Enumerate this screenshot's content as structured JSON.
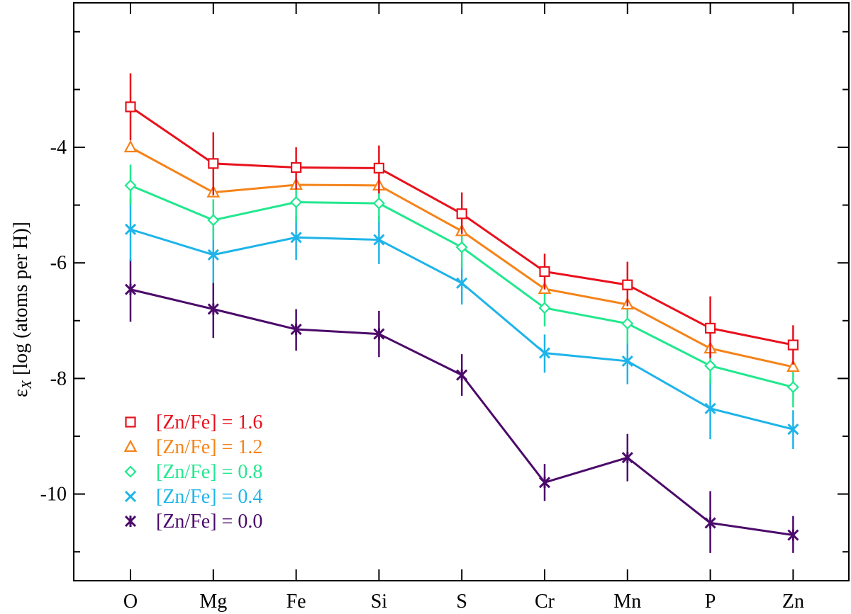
{
  "chart_data": {
    "type": "line",
    "title": "",
    "xlabel": "",
    "ylabel_main": "ε",
    "ylabel_sub": "X",
    "ylabel_rest": " [log (atoms per H)]",
    "categories": [
      "O",
      "Mg",
      "Fe",
      "Si",
      "S",
      "Cr",
      "Mn",
      "P",
      "Zn"
    ],
    "ylim": [
      -11.5,
      -1.5
    ],
    "yticks": [
      -4,
      -6,
      -8,
      -10
    ],
    "ytick_labels": [
      "-4",
      "-6",
      "-8",
      "-10"
    ],
    "legend_position": "lower-left",
    "series": [
      {
        "name": "[Zn/Fe] = 1.6",
        "color": "#e8111c",
        "marker": "square",
        "values": [
          -3.3,
          -4.28,
          -4.35,
          -4.36,
          -5.15,
          -6.15,
          -6.38,
          -7.13,
          -7.42
        ],
        "err_low": [
          -3.88,
          -4.83,
          -4.73,
          -4.8,
          -5.5,
          -6.46,
          -6.75,
          -7.65,
          -7.76
        ],
        "err_high": [
          -2.72,
          -3.74,
          -4.0,
          -3.97,
          -4.78,
          -5.84,
          -5.98,
          -6.58,
          -7.08
        ]
      },
      {
        "name": "[Zn/Fe] = 1.2",
        "color": "#f58319",
        "marker": "triangle",
        "values": [
          -4.0,
          -4.78,
          -4.65,
          -4.66,
          -5.45,
          -6.45,
          -6.72,
          -7.48,
          -7.8
        ],
        "err_low": null,
        "err_high": null
      },
      {
        "name": "[Zn/Fe] = 0.8",
        "color": "#21e88e",
        "marker": "diamond",
        "values": [
          -4.66,
          -5.26,
          -4.95,
          -4.97,
          -5.73,
          -6.78,
          -7.05,
          -7.78,
          -8.15
        ],
        "err_low": [
          -5.0,
          -5.6,
          -5.3,
          -5.3,
          -6.1,
          -7.1,
          -7.4,
          -8.1,
          -8.5
        ],
        "err_high": [
          -4.3,
          -4.9,
          -4.6,
          -4.6,
          -5.4,
          -6.45,
          -6.7,
          -7.45,
          -7.8
        ]
      },
      {
        "name": "[Zn/Fe] = 0.4",
        "color": "#1eb4e9",
        "marker": "x",
        "values": [
          -5.42,
          -5.86,
          -5.56,
          -5.6,
          -6.35,
          -7.56,
          -7.7,
          -8.52,
          -8.88
        ],
        "err_low": [
          -5.97,
          -6.35,
          -5.95,
          -6.02,
          -6.72,
          -7.9,
          -8.1,
          -9.05,
          -9.22
        ],
        "err_high": [
          -4.88,
          -5.37,
          -5.18,
          -5.19,
          -5.98,
          -7.24,
          -7.32,
          -8.0,
          -8.55
        ]
      },
      {
        "name": "[Zn/Fe] = 0.0",
        "color": "#4b0a6a",
        "marker": "star",
        "values": [
          -6.46,
          -6.8,
          -7.15,
          -7.23,
          -7.94,
          -9.8,
          -9.37,
          -10.5,
          -10.71
        ],
        "err_low": [
          -7.02,
          -7.3,
          -7.52,
          -7.63,
          -8.3,
          -10.12,
          -9.78,
          -11.02,
          -11.02
        ],
        "err_high": [
          -5.93,
          -6.34,
          -6.8,
          -6.83,
          -7.58,
          -9.48,
          -8.96,
          -9.95,
          -10.38
        ]
      }
    ]
  }
}
